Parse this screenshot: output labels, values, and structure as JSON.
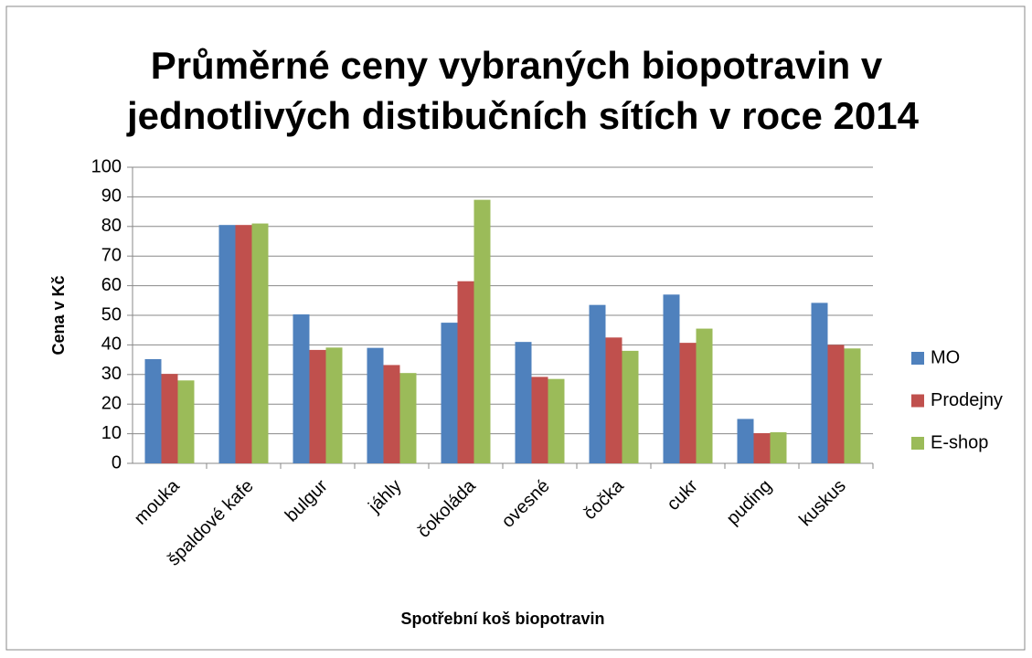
{
  "chart_data": {
    "type": "bar",
    "title": [
      "Průměrné ceny vybraných biopotravin v",
      "jednotlivých distibučních sítích v roce 2014"
    ],
    "x_label": "Spotřební koš biopotravin",
    "y_label": "Cena v Kč",
    "categories": [
      "mouka",
      "špaldové kafe",
      "bulgur",
      "jáhly",
      "čokoláda",
      "ovesné",
      "čočka",
      "cukr",
      "puding",
      "kuskus"
    ],
    "series": [
      {
        "name": "MO",
        "color": "#4f81bd",
        "values": [
          35.2,
          80.5,
          50.3,
          39,
          47.5,
          41,
          53.5,
          57,
          15,
          54.2
        ]
      },
      {
        "name": "Prodejny",
        "color": "#c0504d",
        "values": [
          30.2,
          80.5,
          38.3,
          33.2,
          61.5,
          29.2,
          42.5,
          40.7,
          10.2,
          40
        ]
      },
      {
        "name": "E-shop",
        "color": "#9bbb59",
        "values": [
          28,
          81,
          39.1,
          30.5,
          89,
          28.5,
          38,
          45.5,
          10.5,
          38.8
        ]
      }
    ],
    "ylim": [
      0,
      100
    ],
    "yticks": [
      0,
      10,
      20,
      30,
      40,
      50,
      60,
      70,
      80,
      90,
      100
    ],
    "grid": true,
    "legend": "right"
  }
}
